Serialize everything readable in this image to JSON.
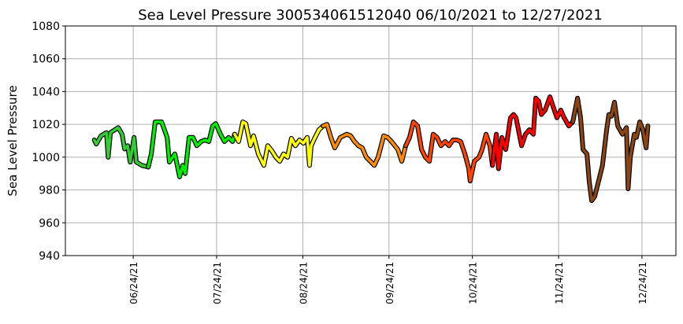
{
  "chart_data": {
    "type": "line",
    "title": "Sea Level Pressure 300534061512040  06/10/2021 to 12/27/2021",
    "xlabel": "",
    "ylabel": "Sea Level Pressure",
    "x_units": "days since 06/10/2021",
    "xlim": [
      -10.4,
      209.2
    ],
    "ylim": [
      940,
      1080
    ],
    "grid": true,
    "yticks": [
      940,
      960,
      980,
      1000,
      1020,
      1040,
      1060,
      1080
    ],
    "xticks": [
      {
        "day": 14,
        "label": "06/24/21"
      },
      {
        "day": 44,
        "label": "07/24/21"
      },
      {
        "day": 75,
        "label": "08/24/21"
      },
      {
        "day": 106,
        "label": "09/24/21"
      },
      {
        "day": 136,
        "label": "10/24/21"
      },
      {
        "day": 167,
        "label": "11/24/21"
      },
      {
        "day": 197,
        "label": "12/24/21"
      }
    ],
    "month_colors": [
      {
        "month": "June",
        "from": 0,
        "to": 20.5,
        "color": "#33cc33"
      },
      {
        "month": "July",
        "from": 20.5,
        "to": 51.5,
        "color": "#00ee00"
      },
      {
        "month": "August",
        "from": 51.5,
        "to": 82.5,
        "color": "#ffff00"
      },
      {
        "month": "September",
        "from": 82.5,
        "to": 112.5,
        "color": "#ff8c00"
      },
      {
        "month": "October",
        "from": 112.5,
        "to": 143.5,
        "color": "#ff4500"
      },
      {
        "month": "November",
        "from": 143.5,
        "to": 173.5,
        "color": "#ff0000"
      },
      {
        "month": "December",
        "from": 173.5,
        "to": 210,
        "color": "#8b4513"
      }
    ],
    "points": [
      [
        0,
        1010.5
      ],
      [
        0.7,
        1008
      ],
      [
        2.4,
        1013
      ],
      [
        4.4,
        1015
      ],
      [
        5,
        1000
      ],
      [
        5.8,
        1015
      ],
      [
        8.6,
        1018
      ],
      [
        10,
        1014
      ],
      [
        10.9,
        1005
      ],
      [
        12,
        1007
      ],
      [
        12.9,
        997
      ],
      [
        14.3,
        1012
      ],
      [
        15.1,
        997
      ],
      [
        17.1,
        995
      ],
      [
        19.4,
        994
      ],
      [
        20.5,
        1002
      ],
      [
        21.9,
        1021.5
      ],
      [
        24.2,
        1021.5
      ],
      [
        26.2,
        1012
      ],
      [
        27,
        997
      ],
      [
        29,
        1002
      ],
      [
        30.7,
        988
      ],
      [
        31.8,
        995
      ],
      [
        32.7,
        990
      ],
      [
        34.1,
        1012
      ],
      [
        35.5,
        1012
      ],
      [
        36.9,
        1007
      ],
      [
        38.4,
        1009.5
      ],
      [
        39.8,
        1010.5
      ],
      [
        41.2,
        1009.5
      ],
      [
        42.6,
        1019
      ],
      [
        43.7,
        1020.5
      ],
      [
        45.4,
        1014
      ],
      [
        46.8,
        1009.5
      ],
      [
        48.3,
        1012
      ],
      [
        49.7,
        1009.5
      ],
      [
        50.5,
        1014
      ],
      [
        51.9,
        1009.5
      ],
      [
        53.4,
        1021.5
      ],
      [
        54.5,
        1020.5
      ],
      [
        56.2,
        1007
      ],
      [
        57.3,
        1013
      ],
      [
        59,
        1002
      ],
      [
        61,
        995
      ],
      [
        62.4,
        1007
      ],
      [
        63.8,
        1004
      ],
      [
        65.3,
        1000
      ],
      [
        66.7,
        997.5
      ],
      [
        68.1,
        1002
      ],
      [
        69.5,
        1000
      ],
      [
        70.9,
        1011.5
      ],
      [
        72.3,
        1007
      ],
      [
        73.8,
        1010.5
      ],
      [
        75.2,
        1008.5
      ],
      [
        76.6,
        1012
      ],
      [
        77.4,
        995
      ],
      [
        78,
        1007
      ],
      [
        79.4,
        1012
      ],
      [
        80.8,
        1016.7
      ],
      [
        82.3,
        1019
      ],
      [
        83.7,
        1020
      ],
      [
        85.1,
        1012
      ],
      [
        86.5,
        1005.7
      ],
      [
        88.5,
        1012
      ],
      [
        90.8,
        1014
      ],
      [
        92.2,
        1013
      ],
      [
        93.6,
        1009.5
      ],
      [
        95,
        1007
      ],
      [
        96.4,
        1005.7
      ],
      [
        97.8,
        1000
      ],
      [
        99.3,
        997.5
      ],
      [
        100.7,
        995
      ],
      [
        102.1,
        1000
      ],
      [
        104.1,
        1013
      ],
      [
        105.5,
        1012
      ],
      [
        106.9,
        1009.5
      ],
      [
        109.2,
        1004.7
      ],
      [
        110.6,
        997.5
      ],
      [
        112,
        1007
      ],
      [
        113.4,
        1012
      ],
      [
        114.8,
        1021.5
      ],
      [
        116.3,
        1019
      ],
      [
        117.7,
        1004.7
      ],
      [
        119.1,
        1000
      ],
      [
        120.5,
        997.5
      ],
      [
        121.9,
        1014
      ],
      [
        123.3,
        1012
      ],
      [
        124.7,
        1007
      ],
      [
        126.2,
        1009.5
      ],
      [
        127.6,
        1007
      ],
      [
        129,
        1010.5
      ],
      [
        130.4,
        1010.5
      ],
      [
        131.8,
        1009.5
      ],
      [
        133.3,
        1002
      ],
      [
        134.7,
        993
      ],
      [
        135.2,
        985.5
      ],
      [
        136.7,
        997.5
      ],
      [
        138.4,
        1000
      ],
      [
        139.5,
        1004.7
      ],
      [
        140.9,
        1014
      ],
      [
        142.3,
        1007
      ],
      [
        143.2,
        995
      ],
      [
        144.6,
        1014
      ],
      [
        145.4,
        993
      ],
      [
        146.6,
        1012
      ],
      [
        148,
        1004.7
      ],
      [
        149.7,
        1024
      ],
      [
        150.8,
        1026
      ],
      [
        151.7,
        1024
      ],
      [
        153.7,
        1007
      ],
      [
        155.1,
        1014
      ],
      [
        156.5,
        1016.7
      ],
      [
        157.9,
        1014
      ],
      [
        158.8,
        1036
      ],
      [
        159.9,
        1034
      ],
      [
        160.8,
        1026
      ],
      [
        162.2,
        1028.7
      ],
      [
        163.9,
        1036.8
      ],
      [
        165,
        1031
      ],
      [
        166.4,
        1024
      ],
      [
        167.8,
        1028.7
      ],
      [
        169,
        1024
      ],
      [
        170.7,
        1019
      ],
      [
        172.1,
        1021.5
      ],
      [
        173.8,
        1036
      ],
      [
        174.9,
        1024
      ],
      [
        175.8,
        1004.7
      ],
      [
        177.2,
        1002
      ],
      [
        178,
        985.5
      ],
      [
        178.9,
        973.5
      ],
      [
        180,
        976
      ],
      [
        181.4,
        985.5
      ],
      [
        182.8,
        995
      ],
      [
        184.3,
        1016.7
      ],
      [
        185.1,
        1026
      ],
      [
        186,
        1025
      ],
      [
        187.1,
        1033.5
      ],
      [
        188.3,
        1019
      ],
      [
        190,
        1014
      ],
      [
        191.4,
        1018
      ],
      [
        192,
        980.7
      ],
      [
        192.8,
        1000
      ],
      [
        194.2,
        1014
      ],
      [
        195,
        1012
      ],
      [
        196.2,
        1021.5
      ],
      [
        197.3,
        1017
      ],
      [
        198.5,
        1005.7
      ],
      [
        199.1,
        1019
      ]
    ]
  }
}
